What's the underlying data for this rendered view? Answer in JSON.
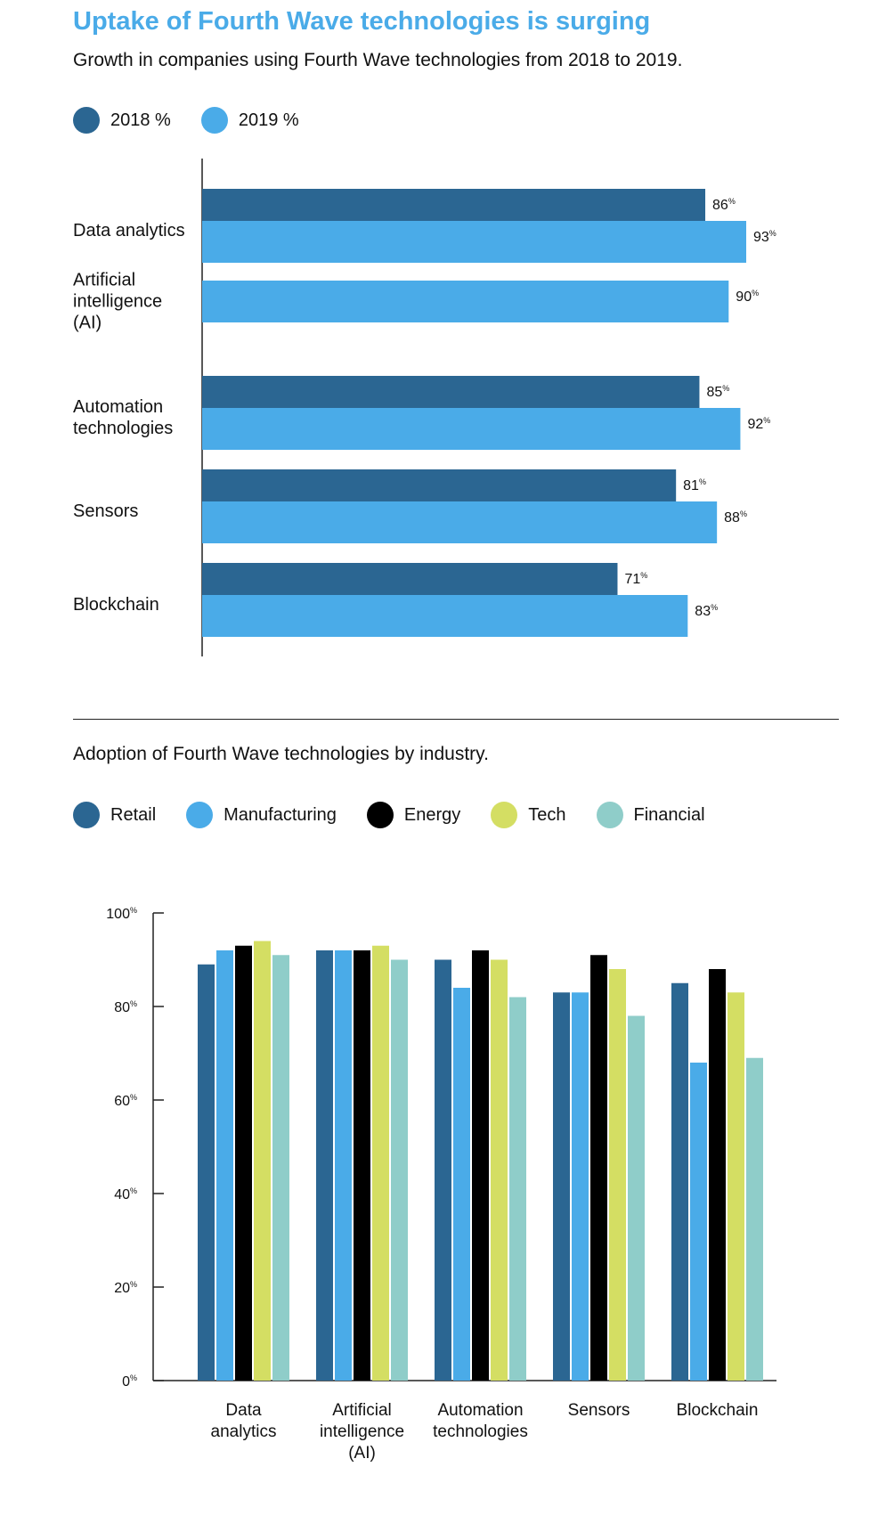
{
  "title": "Uptake of Fourth Wave technologies is surging",
  "subtitle": "Growth in companies using Fourth Wave technologies from 2018 to 2019.",
  "subtitle2": "Adoption of Fourth Wave technologies by industry.",
  "colors": {
    "c2018": "#2b6692",
    "c2019": "#4aabe8",
    "retail": "#2b6692",
    "manufacturing": "#4aabe8",
    "energy": "#000000",
    "tech": "#d4de63",
    "financial": "#8fcdc9"
  },
  "chart_data": [
    {
      "type": "bar",
      "orientation": "horizontal",
      "categories": [
        [
          "Data analytics"
        ],
        [
          "Artificial",
          "intelligence",
          "(AI)"
        ],
        [
          "Automation",
          "technologies"
        ],
        [
          "Sensors"
        ],
        [
          "Blockchain"
        ]
      ],
      "series": [
        {
          "name": "2018 %",
          "color": "#2b6692",
          "values": [
            86,
            null,
            85,
            81,
            71
          ]
        },
        {
          "name": "2019 %",
          "color": "#4aabe8",
          "values": [
            93,
            90,
            92,
            88,
            83
          ]
        }
      ],
      "value_suffix": "%",
      "legend": "top-left"
    },
    {
      "type": "bar",
      "orientation": "vertical",
      "categories": [
        [
          "Data",
          "analytics"
        ],
        [
          "Artificial",
          "intelligence",
          "(AI)"
        ],
        [
          "Automation",
          "technologies"
        ],
        [
          "Sensors"
        ],
        [
          "Blockchain"
        ]
      ],
      "series": [
        {
          "name": "Retail",
          "color": "#2b6692",
          "values": [
            89,
            92,
            90,
            83,
            85
          ]
        },
        {
          "name": "Manufacturing",
          "color": "#4aabe8",
          "values": [
            92,
            92,
            84,
            83,
            68
          ]
        },
        {
          "name": "Energy",
          "color": "#000000",
          "values": [
            93,
            92,
            92,
            91,
            88
          ]
        },
        {
          "name": "Tech",
          "color": "#d4de63",
          "values": [
            94,
            93,
            90,
            88,
            83
          ]
        },
        {
          "name": "Financial",
          "color": "#8fcdc9",
          "values": [
            91,
            90,
            82,
            78,
            69
          ]
        }
      ],
      "ylim": [
        0,
        100
      ],
      "yticks": [
        0,
        20,
        40,
        60,
        80,
        100
      ],
      "value_suffix": "%",
      "legend": "top-left"
    }
  ]
}
